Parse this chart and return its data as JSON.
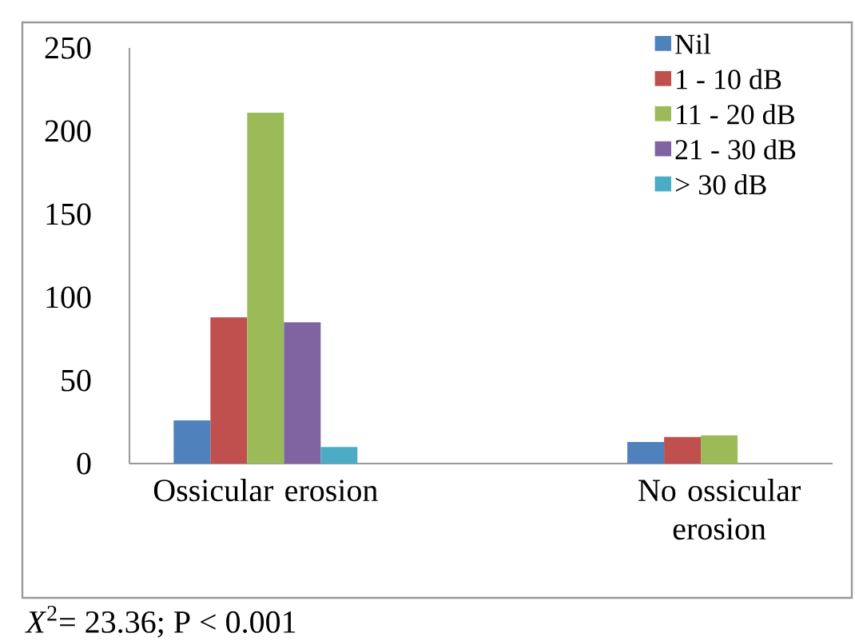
{
  "chart_data": {
    "type": "bar",
    "categories": [
      "Ossicular erosion",
      "No ossicular erosion"
    ],
    "series": [
      {
        "name": "Nil",
        "color": "#4f81bd",
        "values": [
          26,
          13
        ]
      },
      {
        "name": "1 - 10 dB",
        "color": "#c0504d",
        "values": [
          88,
          16
        ]
      },
      {
        "name": "11 - 20 dB",
        "color": "#9bbb59",
        "values": [
          211,
          17
        ]
      },
      {
        "name": "21 - 30 dB",
        "color": "#8064a2",
        "values": [
          85,
          null
        ]
      },
      {
        "name": "> 30 dB",
        "color": "#4bacc6",
        "values": [
          10,
          null
        ]
      }
    ],
    "ylim": [
      0,
      250
    ],
    "yticks": [
      0,
      50,
      100,
      150,
      200,
      250
    ],
    "legend": "top right",
    "annotations": [
      "*X*$^{2}$= 23.36; P < 0.001"
    ]
  }
}
